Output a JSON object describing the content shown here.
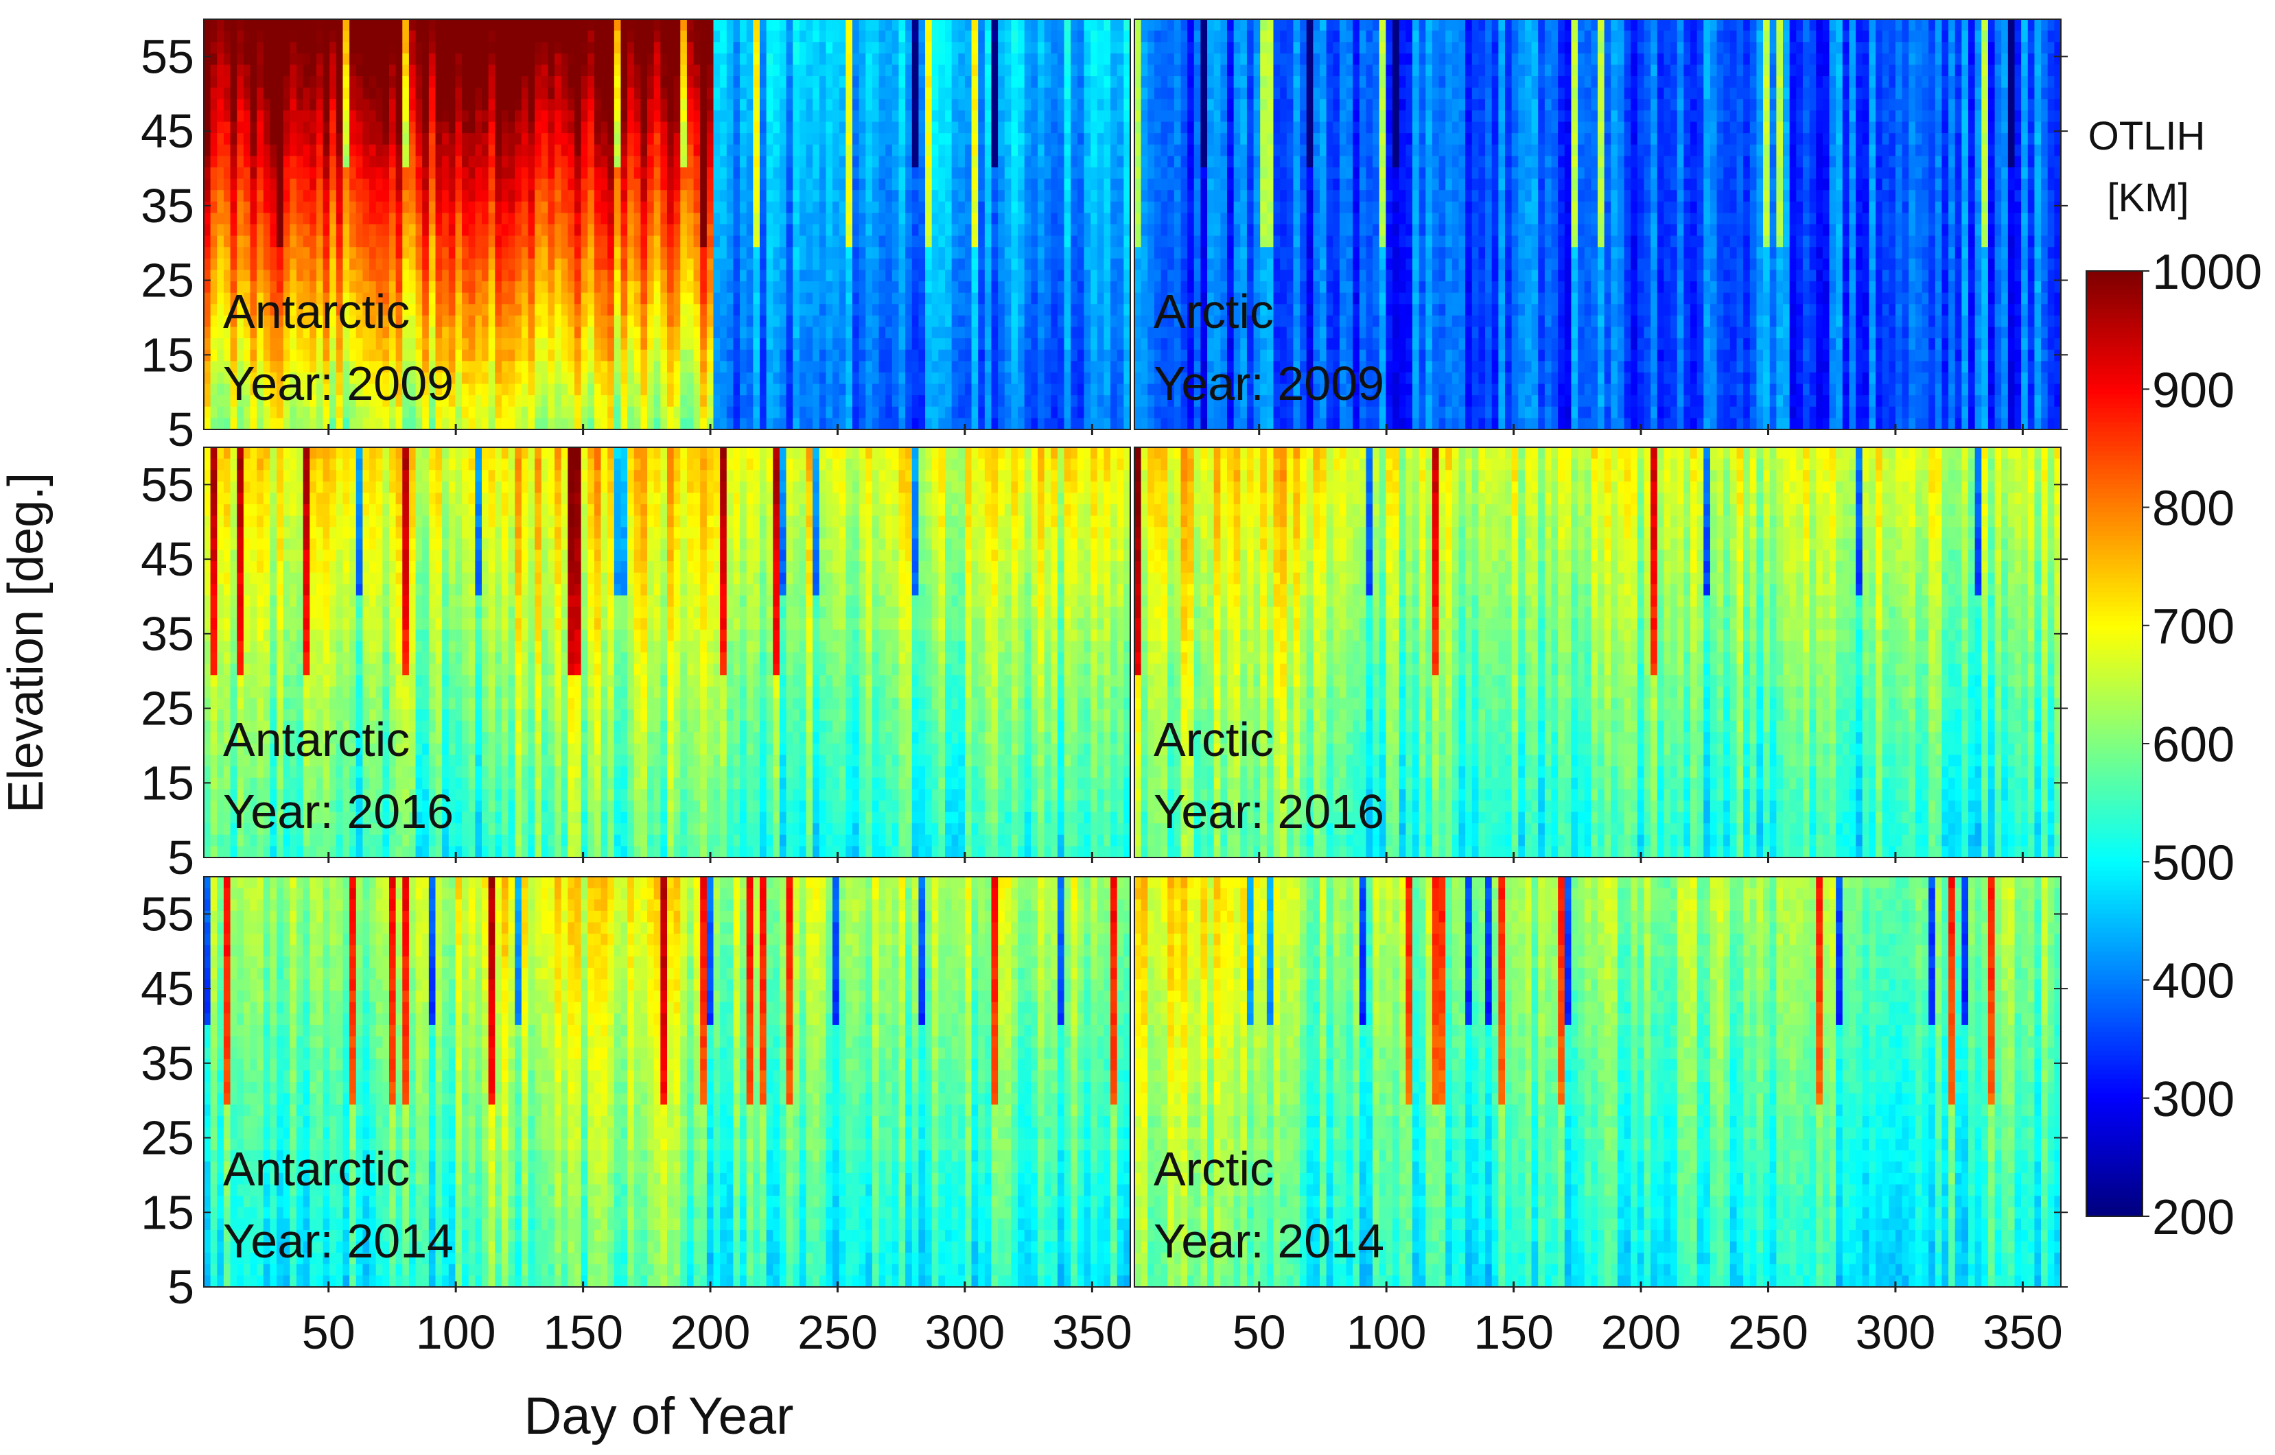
{
  "figure": {
    "y_axis_label": "Elevation [deg.]",
    "x_axis_label": "Day of Year",
    "colorbar_title_line1": "OTLIH",
    "colorbar_title_line2": "[KM]"
  },
  "chart_data": [
    {
      "type": "heatmap",
      "panel": "Antarctic",
      "label_line1": "Antarctic",
      "label_line2": "Year: 2009",
      "regime": "hot_early",
      "seed": 11,
      "x": "Day of Year",
      "x_range": [
        1,
        365
      ],
      "y_range": [
        5,
        60
      ],
      "z_range": [
        200,
        1000
      ],
      "x_ticks": [
        "50",
        "100",
        "150",
        "200",
        "250",
        "300",
        "350"
      ],
      "y_ticks": [
        "5",
        "15",
        "25",
        "35",
        "45",
        "55"
      ]
    },
    {
      "type": "heatmap",
      "panel": "Arctic",
      "label_line1": "Arctic",
      "label_line2": "Year: 2009",
      "regime": "cold",
      "seed": 23,
      "x": "Day of Year",
      "x_range": [
        1,
        365
      ],
      "y_range": [
        5,
        60
      ],
      "z_range": [
        200,
        1000
      ],
      "x_ticks": [
        "50",
        "100",
        "150",
        "200",
        "250",
        "300",
        "350"
      ],
      "y_ticks": [
        "5",
        "15",
        "25",
        "35",
        "45",
        "55"
      ]
    },
    {
      "type": "heatmap",
      "panel": "Antarctic",
      "label_line1": "Antarctic",
      "label_line2": "Year: 2016",
      "regime": "mid_warm",
      "seed": 37,
      "x": "Day of Year",
      "x_range": [
        1,
        365
      ],
      "y_range": [
        5,
        60
      ],
      "z_range": [
        200,
        1000
      ],
      "x_ticks": [
        "50",
        "100",
        "150",
        "200",
        "250",
        "300",
        "350"
      ],
      "y_ticks": [
        "5",
        "15",
        "25",
        "35",
        "45",
        "55"
      ]
    },
    {
      "type": "heatmap",
      "panel": "Arctic",
      "label_line1": "Arctic",
      "label_line2": "Year: 2016",
      "regime": "mid_warm_arctic",
      "seed": 41,
      "x": "Day of Year",
      "x_range": [
        1,
        365
      ],
      "y_range": [
        5,
        60
      ],
      "z_range": [
        200,
        1000
      ],
      "x_ticks": [
        "50",
        "100",
        "150",
        "200",
        "250",
        "300",
        "350"
      ],
      "y_ticks": [
        "5",
        "15",
        "25",
        "35",
        "45",
        "55"
      ]
    },
    {
      "type": "heatmap",
      "panel": "Antarctic",
      "label_line1": "Antarctic",
      "label_line2": "Year: 2014",
      "regime": "mid",
      "seed": 53,
      "x": "Day of Year",
      "x_range": [
        1,
        365
      ],
      "y_range": [
        5,
        60
      ],
      "z_range": [
        200,
        1000
      ],
      "x_ticks": [
        "50",
        "100",
        "150",
        "200",
        "250",
        "300",
        "350"
      ],
      "y_ticks": [
        "5",
        "15",
        "25",
        "35",
        "45",
        "55"
      ]
    },
    {
      "type": "heatmap",
      "panel": "Arctic",
      "label_line1": "Arctic",
      "label_line2": "Year: 2014",
      "regime": "mid_arctic",
      "seed": 67,
      "x": "Day of Year",
      "x_range": [
        1,
        365
      ],
      "y_range": [
        5,
        60
      ],
      "z_range": [
        200,
        1000
      ],
      "x_ticks": [
        "50",
        "100",
        "150",
        "200",
        "250",
        "300",
        "350"
      ],
      "y_ticks": [
        "5",
        "15",
        "25",
        "35",
        "45",
        "55"
      ]
    }
  ],
  "colorbar": {
    "colormap": "jet",
    "min": 200,
    "max": 1000,
    "ticks": [
      "200",
      "300",
      "400",
      "500",
      "600",
      "700",
      "800",
      "900",
      "1000"
    ]
  }
}
